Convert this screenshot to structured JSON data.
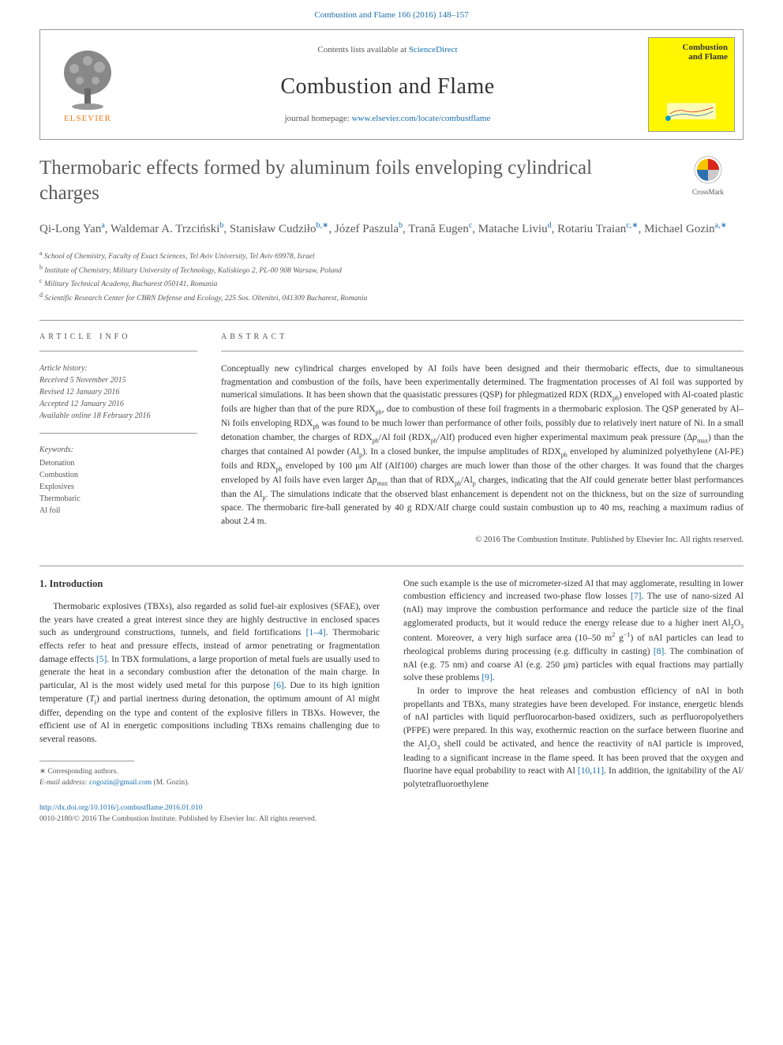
{
  "header": {
    "citation": "Combustion and Flame 166 (2016) 148–157",
    "contents_prefix": "Contents lists available at ",
    "contents_link": "ScienceDirect",
    "journal_name": "Combustion and Flame",
    "homepage_prefix": "journal homepage: ",
    "homepage_link": "www.elsevier.com/locate/combustflame",
    "publisher": "ELSEVIER",
    "cover_title_line1": "Combustion",
    "cover_title_line2": "and Flame"
  },
  "crossmark": {
    "label": "CrossMark"
  },
  "title": "Thermobaric effects formed by aluminum foils enveloping cylindrical charges",
  "authors_html": "Qi-Long Yan<sup>a</sup>, Waldemar A. Trzciński<sup>b</sup>, Stanisław Cudziło<sup>b,∗</sup>, Józef Paszula<sup>b</sup>, Trană Eugen<sup>c</sup>, Matache Liviu<sup>d</sup>, Rotariu Traian<sup>c,∗</sup>, Michael Gozin<sup>a,∗</sup>",
  "affiliations": [
    {
      "sup": "a",
      "text": "School of Chemistry, Faculty of Exact Sciences, Tel Aviv University, Tel Aviv 69978, Israel"
    },
    {
      "sup": "b",
      "text": "Institute of Chemistry, Military University of Technology, Kaliskiego 2, PL-00 908 Warsaw, Poland"
    },
    {
      "sup": "c",
      "text": "Military Technical Academy, Bucharest 050141, Romania"
    },
    {
      "sup": "d",
      "text": "Scientific Research Center for CBRN Defense and Ecology, 225 Sos. Oltenitei, 041309 Bucharest, Romania"
    }
  ],
  "article_info": {
    "label": "ARTICLE INFO",
    "history_label": "Article history:",
    "received": "Received 5 November 2015",
    "revised": "Revised 12 January 2016",
    "accepted": "Accepted 12 January 2016",
    "online": "Available online 18 February 2016",
    "keywords_label": "Keywords:",
    "keywords": [
      "Detonation",
      "Combustion",
      "Explosives",
      "Thermobaric",
      "Al foil"
    ]
  },
  "abstract": {
    "label": "ABSTRACT",
    "text_html": "Conceptually new cylindrical charges enveloped by Al foils have been designed and their thermobaric effects, due to simultaneous fragmentation and combustion of the foils, have been experimentally determined. The fragmentation processes of Al foil was supported by numerical simulations. It has been shown that the quasistatic pressures (QSP) for phlegmatized RDX (RDX<sub>ph</sub>) enveloped with Al-coated plastic foils are higher than that of the pure RDX<sub>ph</sub>, due to combustion of these foil fragments in a thermobaric explosion. The QSP generated by Al–Ni foils enveloping RDX<sub>ph</sub> was found to be much lower than performance of other foils, possibly due to relatively inert nature of Ni. In a small detonation chamber, the charges of RDX<sub>ph</sub>/Al foil (RDX<sub>ph</sub>/Alf) produced even higher experimental maximum peak pressure (Δ<i>p</i><sub>max</sub>) than the charges that contained Al powder (Al<sub>p</sub>). In a closed bunker, the impulse amplitudes of RDX<sub>ph</sub> enveloped by aluminized polyethylene (Al-PE) foils and RDX<sub>ph</sub> enveloped by 100 μm Alf (Alf100) charges are much lower than those of the other charges. It was found that the charges enveloped by Al foils have even larger Δ<i>p</i><sub>max</sub> than that of RDX<sub>ph</sub>/Al<sub>p</sub> charges, indicating that the Alf could generate better blast performances than the Al<sub>p</sub>. The simulations indicate that the observed blast enhancement is dependent not on the thickness, but on the size of surrounding space. The thermobaric fire-ball generated by 40 g RDX/Alf charge could sustain combustion up to 40 ms, reaching a maximum radius of about 2.4 m.",
    "copyright": "© 2016 The Combustion Institute. Published by Elsevier Inc. All rights reserved."
  },
  "body": {
    "heading": "1. Introduction",
    "col1_html": "<p>Thermobaric explosives (TBXs), also regarded as solid fuel-air explosives (SFAE), over the years have created a great interest since they are highly destructive in enclosed spaces such as underground constructions, tunnels, and field fortifications <span class='ref'>[1–4]</span>. Thermobaric effects refer to heat and pressure effects, instead of armor penetrating or fragmentation damage effects <span class='ref'>[5]</span>. In TBX formulations, a large proportion of metal fuels are usually used to generate the heat in a secondary combustion after the detonation of the main charge. In particular, Al is the most widely used metal for this purpose <span class='ref'>[6]</span>. Due to its high ignition temperature (<i>T</i><sub>i</sub>) and partial inertness during detonation, the optimum amount of Al might differ, depending on the type and content of the explosive fillers in TBXs. However, the efficient use of Al in energetic compositions including TBXs remains challenging due to several reasons.</p>",
    "col2_html": "<p style='text-indent:0'>One such example is the use of micrometer-sized Al that may agglomerate, resulting in lower combustion efficiency and increased two-phase flow losses <span class='ref'>[7]</span>. The use of nano-sized Al (nAl) may improve the combustion performance and reduce the particle size of the final agglomerated products, but it would reduce the energy release due to a higher inert Al<sub>2</sub>O<sub>3</sub> content. Moreover, a very high surface area (10–50 m<sup>2</sup> g<sup>−1</sup>) of nAl particles can lead to rheological problems during processing (e.g. difficulty in casting) <span class='ref'>[8]</span>. The combination of nAl (e.g. 75 nm) and coarse Al (e.g. 250 μm) particles with equal fractions may partially solve these problems <span class='ref'>[9]</span>.</p><p>In order to improve the heat releases and combustion efficiency of nAl in both propellants and TBXs, many strategies have been developed. For instance, energetic blends of nAl particles with liquid perfluorocarbon-based oxidizers, such as perfluoropolyethers (PFPE) were prepared. In this way, exothermic reaction on the surface between fluorine and the Al<sub>2</sub>O<sub>3</sub> shell could be activated, and hence the reactivity of nAl particle is improved, leading to a significant increase in the flame speed. It has been proved that the oxygen and fluorine have equal probability to react with Al <span class='ref'>[10,11]</span>. In addition, the ignitability of the Al/ polytetrafluoroethylene</p>"
  },
  "footnotes": {
    "corresponding": "∗ Corresponding authors.",
    "email_label": "E-mail address: ",
    "email": "cogozin@gmail.com",
    "email_suffix": " (M. Gozin)."
  },
  "footer": {
    "doi": "http://dx.doi.org/10.1016/j.combustflame.2016.01.010",
    "issn_line": "0010-2180/© 2016 The Combustion Institute. Published by Elsevier Inc. All rights reserved."
  },
  "colors": {
    "link": "#1a6faf",
    "text": "#333333",
    "muted": "#555555",
    "cover_bg": "#fff600",
    "elsevier_orange": "#ed7d1a",
    "crossmark_red": "#d9261c",
    "crossmark_yellow": "#f5c400",
    "crossmark_blue": "#2e6fb0",
    "crossmark_gray": "#c9c9c9"
  }
}
